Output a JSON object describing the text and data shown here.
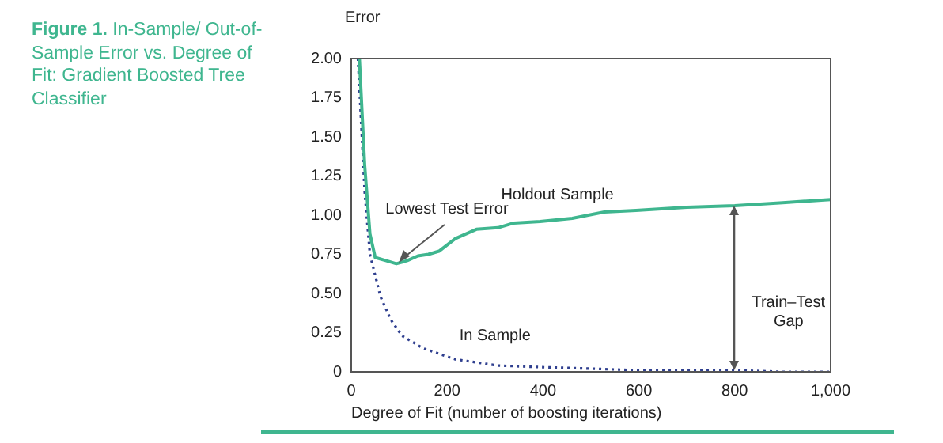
{
  "chart_data": {
    "type": "line",
    "title": "Figure 1.  In-Sample/ Out-of-Sample Error vs. Degree of Fit: Gradient Boosted Tree Classifier",
    "xlabel": "Degree of Fit (number of boosting iterations)",
    "ylabel": "Error",
    "xlim": [
      0,
      1000
    ],
    "xticks": [
      0,
      200,
      400,
      600,
      800,
      {
        "value": 1000,
        "label": "1,000"
      }
    ],
    "ylim": [
      0,
      2
    ],
    "yticks": [
      0,
      0.25,
      {
        "value": 0.5,
        "label": "0.50"
      },
      0.75,
      {
        "value": 1,
        "label": "1.00"
      },
      1.25,
      {
        "value": 1.5,
        "label": "1.50"
      },
      1.75,
      {
        "value": 2,
        "label": "2.00"
      }
    ],
    "grid": false,
    "legend": false,
    "marker": "none",
    "series": [
      {
        "name": "Holdout Sample",
        "color": "#3fb68f",
        "line_style": "solid",
        "x": [
          17,
          28,
          39,
          50,
          72,
          94,
          117,
          139,
          161,
          183,
          217,
          261,
          306,
          339,
          394,
          461,
          528,
          594,
          700,
          800,
          900,
          1000
        ],
        "values": [
          2.0,
          1.32,
          0.88,
          0.73,
          0.71,
          0.69,
          0.71,
          0.74,
          0.75,
          0.77,
          0.85,
          0.91,
          0.92,
          0.95,
          0.96,
          0.98,
          1.02,
          1.03,
          1.05,
          1.06,
          1.08,
          1.1
        ]
      },
      {
        "name": "In Sample",
        "color": "#2f3f8f",
        "line_style": "dotted",
        "x": [
          14,
          28,
          39,
          61,
          83,
          106,
          150,
          217,
          306,
          394,
          500,
          600,
          700,
          800,
          900,
          1000
        ],
        "values": [
          2.0,
          1.15,
          0.75,
          0.48,
          0.33,
          0.23,
          0.15,
          0.08,
          0.04,
          0.03,
          0.02,
          0.01,
          0.01,
          0.01,
          0,
          0
        ]
      }
    ],
    "annotations": [
      {
        "text": "Lowest Test Error",
        "x": 94,
        "y": 0.69
      },
      "Train–Test Gap"
    ]
  }
}
